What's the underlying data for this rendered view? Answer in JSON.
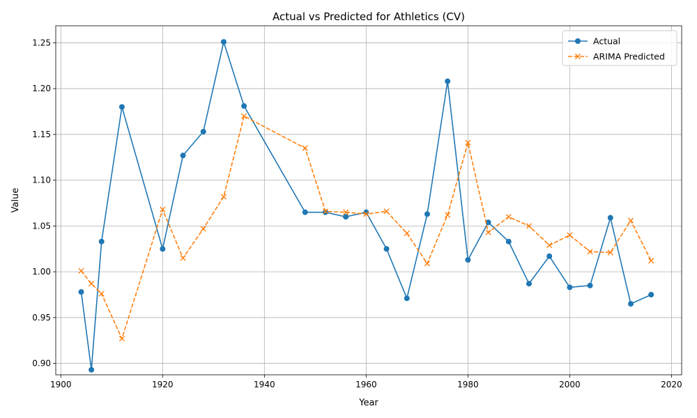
{
  "chart_data": {
    "type": "line",
    "title": "Actual vs Predicted for Athletics (CV)",
    "xlabel": "Year",
    "ylabel": "Value",
    "xlim": [
      1899,
      2022
    ],
    "ylim": [
      0.8875,
      1.2686
    ],
    "x_ticks": [
      1900,
      1920,
      1940,
      1960,
      1980,
      2000,
      2020
    ],
    "y_ticks": [
      0.9,
      0.95,
      1.0,
      1.05,
      1.1,
      1.15,
      1.2,
      1.25
    ],
    "grid": true,
    "legend_position": "top-right",
    "series": [
      {
        "name": "Actual",
        "color": "#1f77b4",
        "style": "solid",
        "marker": "circle",
        "x": [
          1904,
          1906,
          1908,
          1912,
          1920,
          1924,
          1928,
          1932,
          1936,
          1948,
          1952,
          1956,
          1960,
          1964,
          1968,
          1972,
          1976,
          1980,
          1984,
          1988,
          1992,
          1996,
          2000,
          2004,
          2008,
          2012,
          2016
        ],
        "values": [
          0.978,
          0.893,
          1.033,
          1.18,
          1.025,
          1.127,
          1.153,
          1.251,
          1.181,
          1.065,
          1.065,
          1.06,
          1.065,
          1.025,
          0.971,
          1.063,
          1.208,
          1.013,
          1.054,
          1.033,
          0.987,
          1.017,
          0.983,
          0.985,
          1.059,
          0.965,
          0.975
        ]
      },
      {
        "name": "ARIMA Predicted",
        "color": "#ff7f0e",
        "style": "dashed",
        "marker": "x",
        "x": [
          1904,
          1906,
          1908,
          1912,
          1920,
          1924,
          1928,
          1932,
          1936,
          1948,
          1952,
          1956,
          1960,
          1964,
          1968,
          1972,
          1976,
          1980,
          1984,
          1988,
          1992,
          1996,
          2000,
          2004,
          2008,
          2012,
          2016
        ],
        "values": [
          1.001,
          0.987,
          0.976,
          0.927,
          1.068,
          1.015,
          1.047,
          1.082,
          1.17,
          1.135,
          1.066,
          1.065,
          1.063,
          1.066,
          1.042,
          1.009,
          1.062,
          1.141,
          1.043,
          1.06,
          1.05,
          1.029,
          1.04,
          1.022,
          1.021,
          1.056,
          1.012
        ]
      }
    ]
  }
}
